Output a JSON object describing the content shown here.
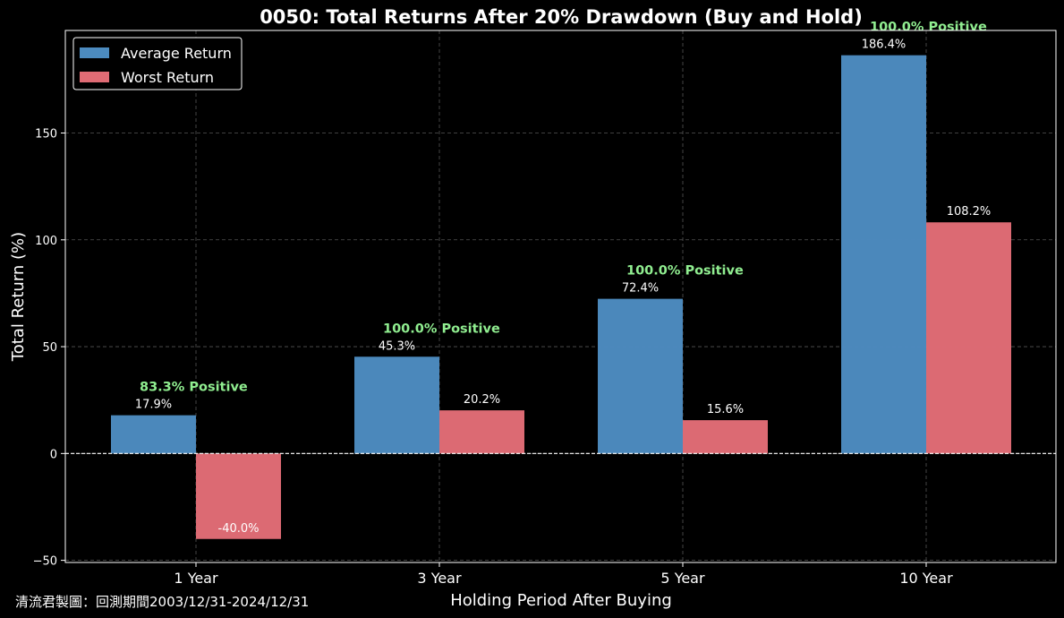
{
  "chart_data": {
    "type": "bar",
    "title": "0050: Total Returns After 20% Drawdown (Buy and Hold)",
    "xlabel": "Holding Period After Buying",
    "ylabel": "Total Return (%)",
    "categories": [
      "1 Year",
      "3 Year",
      "5 Year",
      "10 Year"
    ],
    "series": [
      {
        "name": "Average Return",
        "color": "#4c8bbf",
        "values": [
          17.9,
          45.3,
          72.4,
          186.4
        ],
        "labels": [
          "17.9%",
          "45.3%",
          "72.4%",
          "186.4%"
        ]
      },
      {
        "name": "Worst Return",
        "color": "#e06c75",
        "values": [
          -40.0,
          20.2,
          15.6,
          108.2
        ],
        "labels": [
          "-40.0%",
          "20.2%",
          "15.6%",
          "108.2%"
        ]
      }
    ],
    "annotations": [
      "83.3% Positive",
      "100.0% Positive",
      "100.0% Positive",
      "100.0% Positive"
    ],
    "annotation_color": "#90ee90",
    "ylim": [
      -51,
      198
    ],
    "yticks": [
      -50,
      0,
      50,
      100,
      150
    ],
    "ytick_labels": [
      "−50",
      "0",
      "50",
      "100",
      "150"
    ],
    "grid": true,
    "legend_position": "top-left",
    "zero_line": true,
    "background": "#000000"
  },
  "footer": "清流君製圖：回測期間2003/12/31-2024/12/31"
}
